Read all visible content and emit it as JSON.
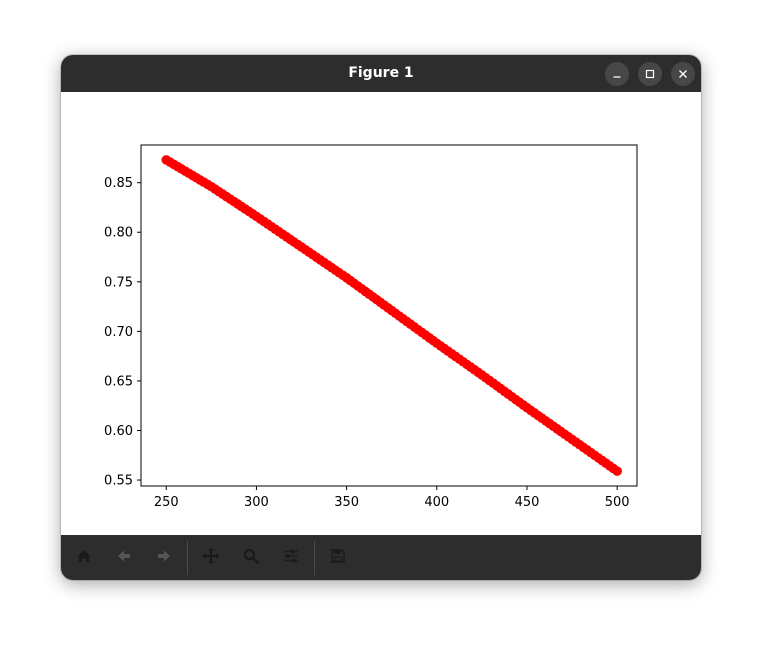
{
  "window": {
    "title": "Figure 1",
    "controls": {
      "minimize_icon": "minimize-icon",
      "maximize_icon": "maximize-icon",
      "close_icon": "close-icon"
    }
  },
  "toolbar": {
    "buttons": [
      {
        "name": "home-button",
        "icon": "home-icon",
        "enabled": true
      },
      {
        "name": "back-button",
        "icon": "arrow-left-icon",
        "enabled": false
      },
      {
        "name": "forward-button",
        "icon": "arrow-right-icon",
        "enabled": false
      },
      {
        "name": "pan-button",
        "icon": "move-icon",
        "enabled": true
      },
      {
        "name": "zoom-button",
        "icon": "magnifier-icon",
        "enabled": true
      },
      {
        "name": "configure-subplots-button",
        "icon": "sliders-icon",
        "enabled": true
      },
      {
        "name": "save-button",
        "icon": "floppy-disk-icon",
        "enabled": true
      }
    ]
  },
  "colors": {
    "titlebar": "#2d2d2d",
    "series": "#ff0000",
    "icon_enabled": "#1a1a1a",
    "icon_disabled": "#555555"
  },
  "chart_data": {
    "type": "scatter",
    "title": "",
    "xlabel": "",
    "ylabel": "",
    "xlim": [
      236,
      511
    ],
    "ylim": [
      0.544,
      0.888
    ],
    "xticks": [
      250,
      300,
      350,
      400,
      450,
      500
    ],
    "xtick_labels": [
      "250",
      "300",
      "350",
      "400",
      "450",
      "500"
    ],
    "yticks": [
      0.55,
      0.6,
      0.65,
      0.7,
      0.75,
      0.8,
      0.85
    ],
    "ytick_labels": [
      "0.55",
      "0.60",
      "0.65",
      "0.70",
      "0.75",
      "0.80",
      "0.85"
    ],
    "grid": false,
    "legend": "none",
    "series": [
      {
        "color": "#ff0000",
        "marker": "circle",
        "x": [
          250,
          275,
          300,
          325,
          350,
          375,
          400,
          425,
          450,
          475,
          500
        ],
        "y": [
          0.873,
          0.846,
          0.816,
          0.785,
          0.754,
          0.721,
          0.688,
          0.656,
          0.623,
          0.591,
          0.559
        ]
      }
    ]
  }
}
